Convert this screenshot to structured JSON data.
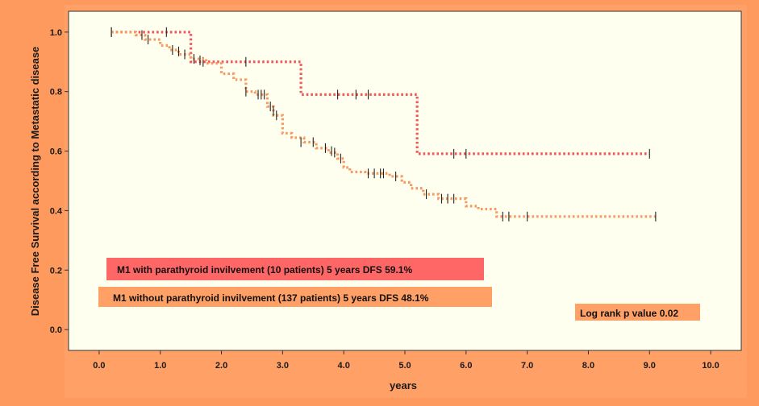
{
  "colors": {
    "page_background": "#FF9A5E",
    "plot_background": "#FFFFF0",
    "series_with": "#F2555A",
    "series_without": "#F79A62",
    "legend_with_fill": "#FF6666",
    "legend_without_fill": "#FFA066",
    "pvalue_fill": "#FFA066"
  },
  "chart_data": {
    "type": "line",
    "subtype": "kaplan-meier step",
    "xlabel": "years",
    "ylabel": "Disease Free Survival according to Metastatic disease",
    "xlim": [
      -0.5,
      10.5
    ],
    "ylim": [
      -0.07,
      1.07
    ],
    "x_ticks": [
      0.0,
      1.0,
      2.0,
      3.0,
      4.0,
      5.0,
      6.0,
      7.0,
      8.0,
      9.0,
      10.0
    ],
    "x_tick_labels": [
      "0.0",
      "1.0",
      "2.0",
      "3.0",
      "4.0",
      "5.0",
      "6.0",
      "7.0",
      "8.0",
      "9.0",
      "10.0"
    ],
    "y_ticks": [
      0.0,
      0.2,
      0.4,
      0.6,
      0.8,
      1.0
    ],
    "y_tick_labels": [
      "0.0",
      "0.2",
      "0.4",
      "0.6",
      "0.8",
      "1.0"
    ],
    "series": [
      {
        "name": "M1 with parathyroid invilvement (10 patients) 5 years DFS 59.1%",
        "color_key": "series_with",
        "steps": [
          [
            0.2,
            1.0
          ],
          [
            1.5,
            0.9
          ],
          [
            3.3,
            0.79
          ],
          [
            5.2,
            0.591
          ],
          [
            9.0,
            0.591
          ]
        ],
        "censored": [
          [
            0.2,
            1.0
          ],
          [
            1.1,
            1.0
          ],
          [
            1.7,
            0.9
          ],
          [
            2.4,
            0.9
          ],
          [
            3.9,
            0.79
          ],
          [
            4.2,
            0.79
          ],
          [
            4.4,
            0.79
          ],
          [
            5.8,
            0.591
          ],
          [
            6.0,
            0.591
          ],
          [
            9.0,
            0.591
          ]
        ]
      },
      {
        "name": "M1 without parathyroid invilvement (137 patients) 5 years DFS 48.1%",
        "color_key": "series_without",
        "steps": [
          [
            0.2,
            1.0
          ],
          [
            0.6,
            0.99
          ],
          [
            0.75,
            0.975
          ],
          [
            1.0,
            0.955
          ],
          [
            1.15,
            0.94
          ],
          [
            1.3,
            0.925
          ],
          [
            1.5,
            0.91
          ],
          [
            1.75,
            0.895
          ],
          [
            2.0,
            0.86
          ],
          [
            2.2,
            0.84
          ],
          [
            2.4,
            0.8
          ],
          [
            2.55,
            0.79
          ],
          [
            2.75,
            0.75
          ],
          [
            2.85,
            0.72
          ],
          [
            3.0,
            0.66
          ],
          [
            3.15,
            0.645
          ],
          [
            3.35,
            0.63
          ],
          [
            3.55,
            0.61
          ],
          [
            3.75,
            0.595
          ],
          [
            3.9,
            0.575
          ],
          [
            4.0,
            0.545
          ],
          [
            4.1,
            0.53
          ],
          [
            4.35,
            0.525
          ],
          [
            4.75,
            0.515
          ],
          [
            4.95,
            0.495
          ],
          [
            5.1,
            0.475
          ],
          [
            5.3,
            0.455
          ],
          [
            5.55,
            0.44
          ],
          [
            6.0,
            0.415
          ],
          [
            6.2,
            0.405
          ],
          [
            6.5,
            0.38
          ],
          [
            9.1,
            0.38
          ]
        ],
        "censored": [
          [
            0.2,
            1.0
          ],
          [
            0.7,
            0.99
          ],
          [
            0.8,
            0.975
          ],
          [
            1.2,
            0.94
          ],
          [
            1.3,
            0.935
          ],
          [
            1.4,
            0.925
          ],
          [
            1.55,
            0.91
          ],
          [
            1.65,
            0.905
          ],
          [
            2.4,
            0.8
          ],
          [
            2.6,
            0.79
          ],
          [
            2.65,
            0.79
          ],
          [
            2.7,
            0.79
          ],
          [
            2.8,
            0.75
          ],
          [
            2.85,
            0.735
          ],
          [
            2.9,
            0.72
          ],
          [
            3.3,
            0.63
          ],
          [
            3.5,
            0.63
          ],
          [
            3.7,
            0.61
          ],
          [
            3.8,
            0.6
          ],
          [
            3.85,
            0.595
          ],
          [
            3.95,
            0.575
          ],
          [
            4.4,
            0.525
          ],
          [
            4.5,
            0.525
          ],
          [
            4.6,
            0.525
          ],
          [
            4.65,
            0.525
          ],
          [
            4.85,
            0.515
          ],
          [
            5.35,
            0.455
          ],
          [
            5.6,
            0.44
          ],
          [
            5.7,
            0.44
          ],
          [
            5.8,
            0.44
          ],
          [
            6.6,
            0.38
          ],
          [
            6.7,
            0.38
          ],
          [
            7.0,
            0.38
          ],
          [
            9.1,
            0.38
          ]
        ]
      }
    ],
    "legend": [
      "M1 with parathyroid invilvement (10 patients) 5 years DFS 59.1%",
      "M1 without parathyroid invilvement (137 patients) 5 years DFS 48.1%"
    ],
    "annotation": "Log rank p value 0.02"
  }
}
